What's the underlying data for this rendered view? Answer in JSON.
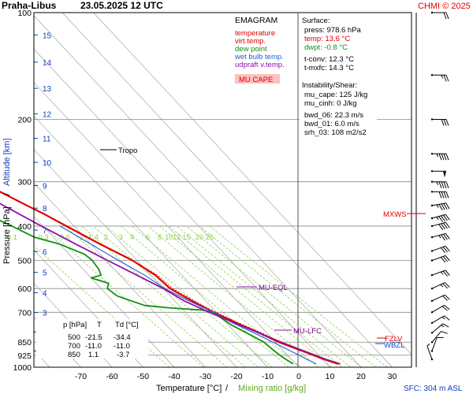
{
  "header": {
    "station": "Praha-Libus",
    "datetime": "23.05.2025 12 UTC",
    "credit": "CHMI © 2025",
    "footer_sfc": "SFC: 304 m ASL"
  },
  "colors": {
    "temperature": "#e00000",
    "virt_temp": "#e00000",
    "dew_point": "#109010",
    "wet_bulb": "#2060d0",
    "updraft": "#9010b0",
    "mixing_ratio": "#8fd14f",
    "isobar": "#888888",
    "isotherm": "#9a9a9a",
    "wind": "#000000",
    "mxws": "#e00000",
    "mucape_bg": "#ffc0c0"
  },
  "legend": {
    "title": "EMAGRAM",
    "items": [
      {
        "label": "temperature",
        "color": "#e00000"
      },
      {
        "label": "virt.temp.",
        "color": "#e00000"
      },
      {
        "label": "dew point",
        "color": "#109010"
      },
      {
        "label": "wet bulb temp.",
        "color": "#2060d0"
      },
      {
        "label": "udpraft v.temp.",
        "color": "#9010b0"
      }
    ],
    "mucape_label": "MU CAPE"
  },
  "surface": {
    "title": "Surface:",
    "press": "press: 978.6 hPa",
    "temp": "temp: 13.6 °C",
    "dwpt": "dwpt: -0.8 °C",
    "tconv": "t-conv: 12.3 °C",
    "tmxfc": "t-mxfc: 14.3 °C"
  },
  "instability": {
    "title": "Instability/Shear:",
    "mu_cape": "mu_cape: 125 J/kg",
    "mu_cinh": "mu_cinh: 0 J/kg",
    "bwd_06": "bwd_06: 22.3 m/s",
    "bwd_01": "bwd_01: 6.0 m/s",
    "srh_03": "srh_03: 108 m2/s2"
  },
  "level_table": {
    "headers": [
      "p [hPa]",
      "T",
      "Td [°C]"
    ],
    "rows": [
      [
        "500",
        "-21.5",
        "-34.4"
      ],
      [
        "700",
        "-11.0",
        "-11.0"
      ],
      [
        "850",
        "1.1",
        "-3.7"
      ]
    ]
  },
  "annotations": {
    "tropo": "Tropo",
    "mu_eql": "MU-EQL",
    "mu_lfc": "MU-LFC",
    "fzlv": "FZLV",
    "wbzl": "WBZL",
    "mxws": "MXWS"
  },
  "chart_data": {
    "type": "line",
    "xlabel": "Temperature [°C]",
    "xlabel_sep": "/",
    "xlabel2": "Mixing ratio [g/kg]",
    "ylabel": "Pressure [hPa]",
    "ylabel_sep": "/",
    "ylabel2": "Altitude [km]",
    "x_ticks": [
      -70,
      -60,
      -50,
      -40,
      -30,
      -20,
      -10,
      0,
      10,
      20,
      30
    ],
    "y_ticks": [
      100,
      200,
      300,
      400,
      500,
      600,
      700,
      850,
      925,
      1000
    ],
    "alt_ticks": [
      1,
      2,
      3,
      4,
      5,
      6,
      7,
      8,
      9,
      10,
      11,
      12,
      13,
      14,
      15,
      16
    ],
    "mixing_ratio_labels": [
      "0.1",
      "0.3",
      "0.6",
      "1",
      "1.4",
      "2",
      "3",
      "4",
      "6",
      "8",
      "10",
      "12",
      "15",
      "20",
      "25"
    ],
    "mixing_ratio_values": [
      0.1,
      0.3,
      0.6,
      1,
      1.4,
      2,
      3,
      4,
      6,
      8,
      10,
      12,
      15,
      20,
      25
    ],
    "xlim": [
      -77,
      33
    ],
    "ylim": [
      100,
      1000
    ],
    "grid": true,
    "series": [
      {
        "name": "temperature",
        "p": [
          978.6,
          950,
          925,
          900,
          850,
          800,
          750,
          700,
          650,
          600,
          550,
          500,
          450,
          400,
          370,
          350,
          320,
          300,
          280,
          260,
          250,
          245,
          240,
          230,
          220,
          210,
          200,
          190,
          180,
          170,
          160,
          150,
          140,
          130,
          120,
          110,
          100
        ],
        "t": [
          13.6,
          10.5,
          8.3,
          6.0,
          1.1,
          -2.5,
          -6.8,
          -11.0,
          -14.5,
          -17.8,
          -18.6,
          -21.5,
          -27.0,
          -32.5,
          -36.0,
          -39.0,
          -43.5,
          -47.0,
          -50.5,
          -53.5,
          -55.0,
          -55.5,
          -56.0,
          -55.0,
          -55.5,
          -57.0,
          -58.0,
          -57.0,
          -56.0,
          -56.5,
          -56.0,
          -55.5,
          -55.5,
          -56.0,
          -56.5,
          -55.5,
          -55.0
        ]
      },
      {
        "name": "dew point",
        "p": [
          978.6,
          950,
          925,
          900,
          850,
          800,
          760,
          720,
          700,
          690,
          680,
          670,
          650,
          630,
          600,
          580,
          560,
          550,
          530,
          500,
          480,
          450,
          430,
          400,
          380,
          370,
          360,
          350,
          340,
          320,
          300,
          280,
          260,
          250,
          240,
          230,
          220,
          210,
          200,
          190,
          180,
          170,
          160,
          150,
          140,
          130,
          120,
          110,
          100
        ],
        "t": [
          -0.8,
          -1.8,
          -2.5,
          -3.0,
          -3.7,
          -6.5,
          -9.0,
          -10.5,
          -11.0,
          -14.0,
          -24.0,
          -31.0,
          -34.0,
          -37.0,
          -38.0,
          -36.0,
          -40.0,
          -36.0,
          -35.0,
          -34.4,
          -35.0,
          -40.0,
          -46.0,
          -50.0,
          -53.0,
          -56.0,
          -55.0,
          -58.0,
          -60.0,
          -59.0,
          -56.0,
          -60.0,
          -63.0,
          -64.0,
          -67.0,
          -68.0,
          -70.0,
          -70.5,
          -71.5,
          -72.0,
          -71.0,
          -71.0,
          -72.0,
          -72.0,
          -73.0,
          -72.5,
          -73.0,
          -74.0,
          -73.5
        ]
      },
      {
        "name": "wet bulb temp.",
        "p": [
          978.6,
          950,
          925,
          900,
          850,
          800,
          750,
          700,
          650,
          600,
          550,
          500,
          450,
          400
        ],
        "t": [
          6.6,
          5.0,
          3.7,
          2.2,
          -0.8,
          -4.2,
          -8.0,
          -11.0,
          -15.5,
          -19.5,
          -22.0,
          -26.0,
          -30.0,
          -34.5
        ]
      },
      {
        "name": "udpraft v.temp.",
        "p": [
          978.6,
          950,
          925,
          900,
          850,
          800,
          750,
          700,
          650,
          600,
          550,
          500,
          450,
          400,
          350,
          300,
          250
        ],
        "t": [
          14.3,
          11.0,
          8.8,
          6.5,
          1.8,
          -2.7,
          -7.4,
          -12.4,
          -17.0,
          -20.0,
          -24.5,
          -29.5,
          -34.8,
          -40.5,
          -46.5,
          -53.0,
          -60.5
        ]
      }
    ],
    "wind_barbs": [
      {
        "p": 100,
        "dir": 270,
        "kt": 20
      },
      {
        "p": 150,
        "dir": 270,
        "kt": 25
      },
      {
        "p": 200,
        "dir": 270,
        "kt": 30
      },
      {
        "p": 250,
        "dir": 270,
        "kt": 45
      },
      {
        "p": 280,
        "dir": 270,
        "kt": 50
      },
      {
        "p": 300,
        "dir": 270,
        "kt": 45
      },
      {
        "p": 320,
        "dir": 270,
        "kt": 40
      },
      {
        "p": 350,
        "dir": 260,
        "kt": 45
      },
      {
        "p": 380,
        "dir": 255,
        "kt": 45
      },
      {
        "p": 400,
        "dir": 255,
        "kt": 40
      },
      {
        "p": 430,
        "dir": 255,
        "kt": 35
      },
      {
        "p": 470,
        "dir": 250,
        "kt": 30
      },
      {
        "p": 500,
        "dir": 250,
        "kt": 30
      },
      {
        "p": 550,
        "dir": 250,
        "kt": 25
      },
      {
        "p": 600,
        "dir": 245,
        "kt": 25
      },
      {
        "p": 650,
        "dir": 245,
        "kt": 20
      },
      {
        "p": 700,
        "dir": 240,
        "kt": 20
      },
      {
        "p": 750,
        "dir": 240,
        "kt": 15
      },
      {
        "p": 800,
        "dir": 230,
        "kt": 15
      },
      {
        "p": 850,
        "dir": 220,
        "kt": 10
      },
      {
        "p": 900,
        "dir": 200,
        "kt": 10
      },
      {
        "p": 950,
        "dir": 160,
        "kt": 5
      }
    ],
    "levels": {
      "tropo": 240,
      "mu_eql": 590,
      "mu_lfc": 815,
      "fzlv": 850,
      "wbzl": 860,
      "mxws": 372
    }
  }
}
